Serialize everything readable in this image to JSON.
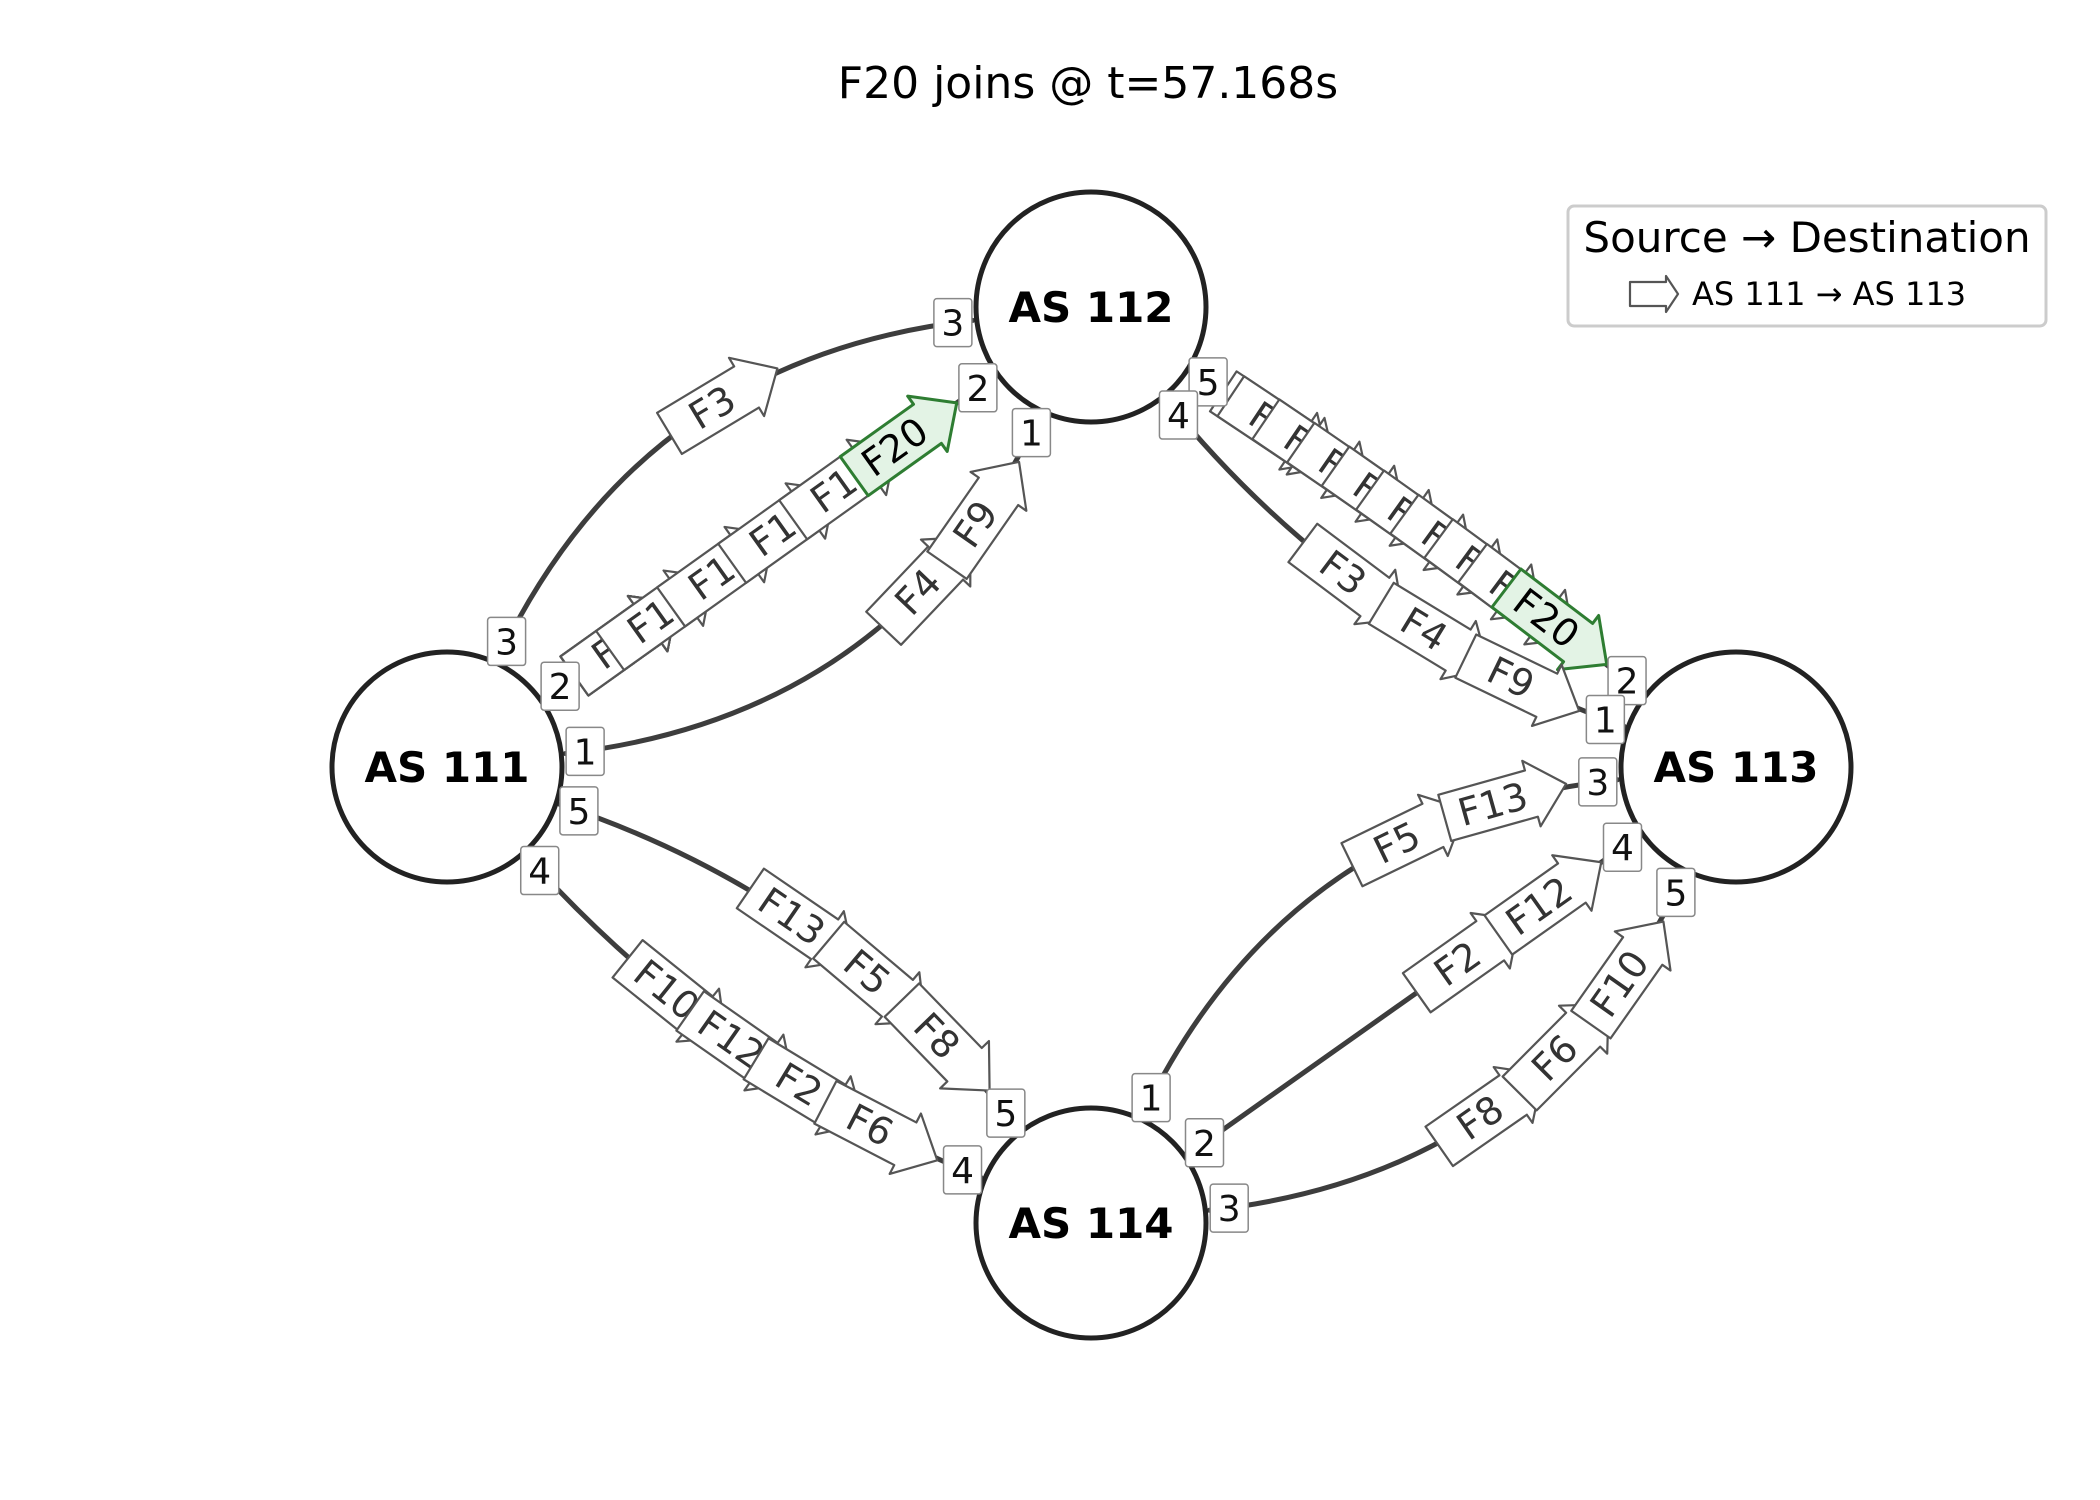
{
  "title": "F20 joins @ t=57.168s",
  "legend": {
    "title": "Source → Destination",
    "entry": "AS 111 → AS 113"
  },
  "colors": {
    "highlight_fill": "#e3f3e5",
    "highlight_stroke": "#2e7d32",
    "flow_stroke": "#555555",
    "link_stroke": "#3d3d3d"
  },
  "nodes": [
    {
      "id": "n111",
      "label": "AS 111"
    },
    {
      "id": "n112",
      "label": "AS 112"
    },
    {
      "id": "n113",
      "label": "AS 113"
    },
    {
      "id": "n114",
      "label": "AS 114"
    }
  ],
  "links": [
    {
      "from": "n111",
      "to": "n112",
      "from_port": "3",
      "to_port": "3",
      "flows": [
        "F3"
      ]
    },
    {
      "from": "n111",
      "to": "n112",
      "from_port": "2",
      "to_port": "2",
      "flows": [
        "F1",
        "F1",
        "F1",
        "F1",
        "F1",
        "F1",
        "F1",
        "F1",
        "F1",
        "F20"
      ],
      "highlight": "F20"
    },
    {
      "from": "n111",
      "to": "n112",
      "from_port": "1",
      "to_port": "1",
      "flows": [
        "F4",
        "F9"
      ]
    },
    {
      "from": "n112",
      "to": "n113",
      "from_port": "5",
      "to_port": "2",
      "flows": [
        "F1",
        "F1",
        "F1",
        "F1",
        "F1",
        "F1",
        "F1",
        "F1",
        "F1",
        "F20"
      ],
      "highlight": "F20"
    },
    {
      "from": "n112",
      "to": "n113",
      "from_port": "4",
      "to_port": "1",
      "flows": [
        "F3",
        "F4",
        "F9"
      ]
    },
    {
      "from": "n111",
      "to": "n114",
      "from_port": "5",
      "to_port": "5",
      "flows": [
        "F13",
        "F5",
        "F8"
      ]
    },
    {
      "from": "n111",
      "to": "n114",
      "from_port": "4",
      "to_port": "4",
      "flows": [
        "F10",
        "F12",
        "F2",
        "F6"
      ]
    },
    {
      "from": "n114",
      "to": "n113",
      "from_port": "1",
      "to_port": "3",
      "flows": [
        "F5",
        "F13"
      ]
    },
    {
      "from": "n114",
      "to": "n113",
      "from_port": "2",
      "to_port": "4",
      "flows": [
        "F2",
        "F12"
      ]
    },
    {
      "from": "n114",
      "to": "n113",
      "from_port": "3",
      "to_port": "5",
      "flows": [
        "F8",
        "F6",
        "F10"
      ]
    }
  ]
}
